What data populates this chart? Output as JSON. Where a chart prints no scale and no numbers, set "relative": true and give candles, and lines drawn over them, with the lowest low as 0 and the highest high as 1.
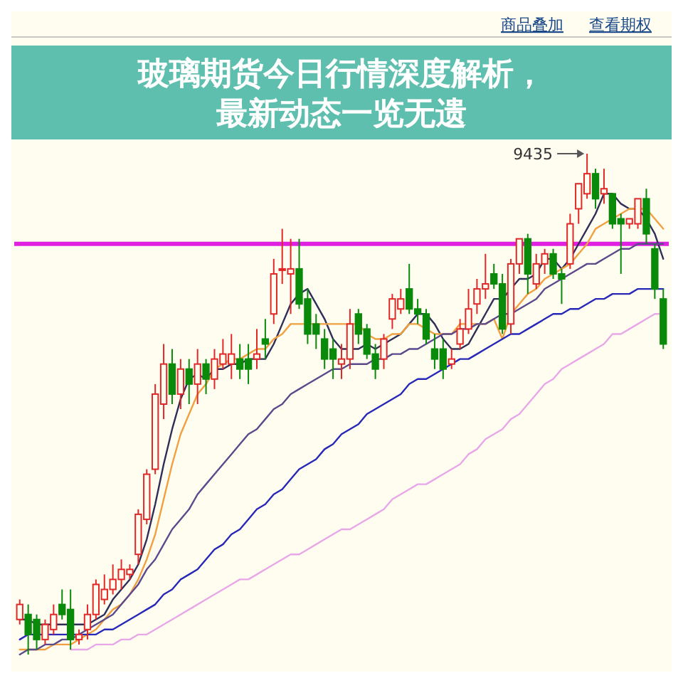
{
  "chart_data": {
    "type": "candlestick",
    "title": "玻璃期货今日行情深度解析，最新动态一览无遗",
    "relative": true,
    "annotations": [
      "商品叠加",
      "查看期权",
      "9435"
    ],
    "categories": [
      null,
      null,
      null,
      null,
      null,
      null,
      null,
      null,
      null,
      null,
      null,
      null,
      null,
      null,
      null,
      null,
      null,
      null,
      null,
      null,
      null,
      null,
      null,
      null,
      null,
      null,
      null,
      null,
      null,
      null,
      null,
      null,
      null,
      null,
      null,
      null,
      null,
      null,
      null,
      null,
      null,
      null,
      null,
      null,
      null,
      null,
      null,
      null,
      null,
      null,
      null,
      null,
      null,
      null,
      null,
      null,
      null,
      null,
      null,
      null,
      null,
      null,
      null,
      null,
      null,
      null,
      null,
      null,
      null,
      null,
      null,
      null,
      null,
      null,
      null,
      null,
      null
    ],
    "ohlc": [
      [
        0.07,
        0.11,
        0.06,
        0.1
      ],
      [
        0.08,
        0.1,
        0,
        0.04
      ],
      [
        0.07,
        0.08,
        0.01,
        0.03
      ],
      [
        0.03,
        0.07,
        0.02,
        0.06
      ],
      [
        0.05,
        0.1,
        0.04,
        0.08
      ],
      [
        0.1,
        0.13,
        0.07,
        0.08
      ],
      [
        0.09,
        0.13,
        0.01,
        0.03
      ],
      [
        0.03,
        0.05,
        0.02,
        0.04
      ],
      [
        0.05,
        0.1,
        0.03,
        0.08
      ],
      [
        0.08,
        0.15,
        0.07,
        0.14
      ],
      [
        0.11,
        0.16,
        0.1,
        0.13
      ],
      [
        0.13,
        0.18,
        0.12,
        0.15
      ],
      [
        0.15,
        0.19,
        0.13,
        0.17
      ],
      [
        0.16,
        0.18,
        0.15,
        0.17
      ],
      [
        0.2,
        0.29,
        0.18,
        0.28
      ],
      [
        0.27,
        0.37,
        0.26,
        0.36
      ],
      [
        0.37,
        0.54,
        0.36,
        0.52
      ],
      [
        0.5,
        0.62,
        0.47,
        0.58
      ],
      [
        0.58,
        0.61,
        0.5,
        0.52
      ],
      [
        0.52,
        0.59,
        0.49,
        0.57
      ],
      [
        0.57,
        0.59,
        0.5,
        0.54
      ],
      [
        0.54,
        0.61,
        0.5,
        0.58
      ],
      [
        0.58,
        0.59,
        0.52,
        0.55
      ],
      [
        0.55,
        0.61,
        0.53,
        0.59
      ],
      [
        0.58,
        0.63,
        0.57,
        0.6
      ],
      [
        0.58,
        0.64,
        0.55,
        0.6
      ],
      [
        0.59,
        0.62,
        0.55,
        0.57
      ],
      [
        0.59,
        0.62,
        0.54,
        0.57
      ],
      [
        0.59,
        0.65,
        0.57,
        0.6
      ],
      [
        0.63,
        0.67,
        0.59,
        0.62
      ],
      [
        0.68,
        0.79,
        0.66,
        0.76
      ],
      [
        0.77,
        0.85,
        0.74,
        0.77
      ],
      [
        0.76,
        0.83,
        0.68,
        0.77
      ],
      [
        0.77,
        0.83,
        0.69,
        0.7
      ],
      [
        0.71,
        0.73,
        0.62,
        0.64
      ],
      [
        0.66,
        0.68,
        0.61,
        0.64
      ],
      [
        0.63,
        0.65,
        0.57,
        0.59
      ],
      [
        0.61,
        0.63,
        0.55,
        0.59
      ],
      [
        0.58,
        0.62,
        0.55,
        0.59
      ],
      [
        0.59,
        0.69,
        0.57,
        0.66
      ],
      [
        0.68,
        0.69,
        0.62,
        0.64
      ],
      [
        0.65,
        0.66,
        0.59,
        0.6
      ],
      [
        0.6,
        0.62,
        0.55,
        0.57
      ],
      [
        0.59,
        0.64,
        0.57,
        0.63
      ],
      [
        0.67,
        0.72,
        0.65,
        0.71
      ],
      [
        0.69,
        0.73,
        0.68,
        0.71
      ],
      [
        0.73,
        0.78,
        0.68,
        0.69
      ],
      [
        0.69,
        0.71,
        0.66,
        0.68
      ],
      [
        0.68,
        0.69,
        0.62,
        0.63
      ],
      [
        0.61,
        0.64,
        0.57,
        0.59
      ],
      [
        0.61,
        0.63,
        0.55,
        0.57
      ],
      [
        0.58,
        0.61,
        0.57,
        0.59
      ],
      [
        0.62,
        0.67,
        0.61,
        0.65
      ],
      [
        0.65,
        0.73,
        0.64,
        0.69
      ],
      [
        0.7,
        0.75,
        0.68,
        0.73
      ],
      [
        0.73,
        0.8,
        0.71,
        0.74
      ],
      [
        0.76,
        0.78,
        0.73,
        0.74
      ],
      [
        0.74,
        0.76,
        0.64,
        0.65
      ],
      [
        0.66,
        0.79,
        0.64,
        0.78
      ],
      [
        0.78,
        0.83,
        0.76,
        0.83
      ],
      [
        0.83,
        0.84,
        0.72,
        0.76
      ],
      [
        0.74,
        0.8,
        0.73,
        0.78
      ],
      [
        0.78,
        0.81,
        0.76,
        0.8
      ],
      [
        0.8,
        0.81,
        0.75,
        0.76
      ],
      [
        0.76,
        0.77,
        0.7,
        0.75
      ],
      [
        0.78,
        0.88,
        0.77,
        0.86
      ],
      [
        0.89,
        0.94,
        0.86,
        0.94
      ],
      [
        0.92,
        1,
        0.91,
        0.96
      ],
      [
        0.96,
        0.97,
        0.89,
        0.91
      ],
      [
        0.92,
        0.97,
        0.9,
        0.93
      ],
      [
        0.92,
        0.92,
        0.85,
        0.86
      ],
      [
        0.87,
        0.88,
        0.76,
        0.86
      ],
      [
        0.86,
        0.87,
        0.85,
        0.87
      ],
      [
        0.86,
        0.91,
        0.85,
        0.91
      ],
      [
        0.91,
        0.93,
        0.82,
        0.84
      ],
      [
        0.81,
        0.82,
        0.71,
        0.73
      ],
      [
        0.71,
        0.73,
        0.61,
        0.62
      ]
    ],
    "series": [
      {
        "type": "line",
        "color": "#2e2e58",
        "values": [
          0.07,
          0.07,
          0.06,
          0.06,
          0.06,
          0.06,
          0.06,
          0.06,
          0.06,
          0.07,
          0.08,
          0.11,
          0.13,
          0.15,
          0.18,
          0.23,
          0.3,
          0.38,
          0.45,
          0.51,
          0.55,
          0.56,
          0.55,
          0.57,
          0.57,
          0.58,
          0.58,
          0.59,
          0.59,
          0.59,
          0.62,
          0.66,
          0.7,
          0.72,
          0.73,
          0.7,
          0.67,
          0.63,
          0.61,
          0.61,
          0.61,
          0.62,
          0.61,
          0.62,
          0.63,
          0.64,
          0.66,
          0.68,
          0.68,
          0.66,
          0.63,
          0.61,
          0.61,
          0.62,
          0.65,
          0.68,
          0.71,
          0.71,
          0.73,
          0.75,
          0.75,
          0.76,
          0.79,
          0.79,
          0.77,
          0.79,
          0.82,
          0.85,
          0.88,
          0.92,
          0.92,
          0.9,
          0.89,
          0.89,
          0.87,
          0.84,
          0.79
        ]
      },
      {
        "type": "line",
        "color": "#f0a040",
        "values": [
          0.01,
          0.01,
          0.01,
          0.01,
          0.02,
          0.02,
          0.02,
          0.03,
          0.04,
          0.05,
          0.07,
          0.09,
          0.1,
          0.12,
          0.15,
          0.19,
          0.24,
          0.31,
          0.38,
          0.44,
          0.48,
          0.52,
          0.54,
          0.57,
          0.58,
          0.59,
          0.59,
          0.6,
          0.61,
          0.61,
          0.63,
          0.64,
          0.66,
          0.66,
          0.66,
          0.66,
          0.66,
          0.66,
          0.66,
          0.66,
          0.66,
          0.64,
          0.63,
          0.63,
          0.64,
          0.64,
          0.66,
          0.66,
          0.65,
          0.64,
          0.64,
          0.64,
          0.66,
          0.66,
          0.66,
          0.66,
          0.67,
          0.63,
          0.68,
          0.7,
          0.72,
          0.73,
          0.75,
          0.76,
          0.77,
          0.78,
          0.8,
          0.82,
          0.85,
          0.86,
          0.87,
          0.88,
          0.89,
          0.89,
          0.89,
          0.87,
          0.85
        ]
      },
      {
        "type": "line",
        "color": "#5a4a8c",
        "values": [
          0,
          0.01,
          0.01,
          0.02,
          0.02,
          0.03,
          0.03,
          0.04,
          0.05,
          0.06,
          0.07,
          0.08,
          0.1,
          0.12,
          0.14,
          0.17,
          0.19,
          0.22,
          0.25,
          0.27,
          0.29,
          0.32,
          0.34,
          0.36,
          0.38,
          0.4,
          0.42,
          0.44,
          0.45,
          0.47,
          0.49,
          0.5,
          0.52,
          0.53,
          0.54,
          0.55,
          0.56,
          0.57,
          0.57,
          0.58,
          0.58,
          0.58,
          0.59,
          0.59,
          0.6,
          0.6,
          0.61,
          0.61,
          0.62,
          0.63,
          0.64,
          0.64,
          0.65,
          0.65,
          0.66,
          0.66,
          0.67,
          0.68,
          0.68,
          0.69,
          0.7,
          0.71,
          0.73,
          0.74,
          0.75,
          0.76,
          0.77,
          0.78,
          0.78,
          0.79,
          0.8,
          0.81,
          0.81,
          0.82,
          0.82,
          0.82,
          0.82
        ]
      },
      {
        "type": "line",
        "color": "#2828b8",
        "values": [
          0.03,
          0.04,
          0.04,
          0.04,
          0.04,
          0.04,
          0.04,
          0.04,
          0.04,
          0.04,
          0.05,
          0.05,
          0.06,
          0.07,
          0.08,
          0.09,
          0.1,
          0.12,
          0.13,
          0.15,
          0.16,
          0.17,
          0.19,
          0.21,
          0.22,
          0.24,
          0.25,
          0.27,
          0.29,
          0.3,
          0.32,
          0.33,
          0.35,
          0.37,
          0.38,
          0.39,
          0.41,
          0.42,
          0.44,
          0.45,
          0.46,
          0.48,
          0.49,
          0.5,
          0.51,
          0.52,
          0.54,
          0.55,
          0.55,
          0.56,
          0.57,
          0.58,
          0.59,
          0.59,
          0.6,
          0.61,
          0.62,
          0.63,
          0.64,
          0.64,
          0.65,
          0.66,
          0.67,
          0.68,
          0.68,
          0.69,
          0.69,
          0.7,
          0.71,
          0.71,
          0.72,
          0.72,
          0.72,
          0.73,
          0.73,
          0.73,
          0.73
        ]
      },
      {
        "type": "line",
        "color": "#e8a8e8",
        "values": [
          null,
          null,
          null,
          null,
          null,
          null,
          0.01,
          0.01,
          0.01,
          0.02,
          0.02,
          0.02,
          0.03,
          0.03,
          0.04,
          0.04,
          0.05,
          0.06,
          0.07,
          0.08,
          0.09,
          0.1,
          0.11,
          0.12,
          0.13,
          0.14,
          0.15,
          0.15,
          0.16,
          0.17,
          0.18,
          0.19,
          0.2,
          0.2,
          0.21,
          0.22,
          0.23,
          0.24,
          0.25,
          0.25,
          0.26,
          0.27,
          0.28,
          0.29,
          0.31,
          0.32,
          0.33,
          0.34,
          0.34,
          0.35,
          0.36,
          0.37,
          0.38,
          0.4,
          0.41,
          0.43,
          0.44,
          0.45,
          0.47,
          0.48,
          0.5,
          0.52,
          0.54,
          0.55,
          0.57,
          0.58,
          0.59,
          0.6,
          0.61,
          0.62,
          0.64,
          0.64,
          0.65,
          0.66,
          0.67,
          0.68,
          0.68
        ]
      }
    ],
    "ref_lines": [
      {
        "axis": "y",
        "value": 0.82,
        "color": "#e020e0"
      }
    ]
  }
}
